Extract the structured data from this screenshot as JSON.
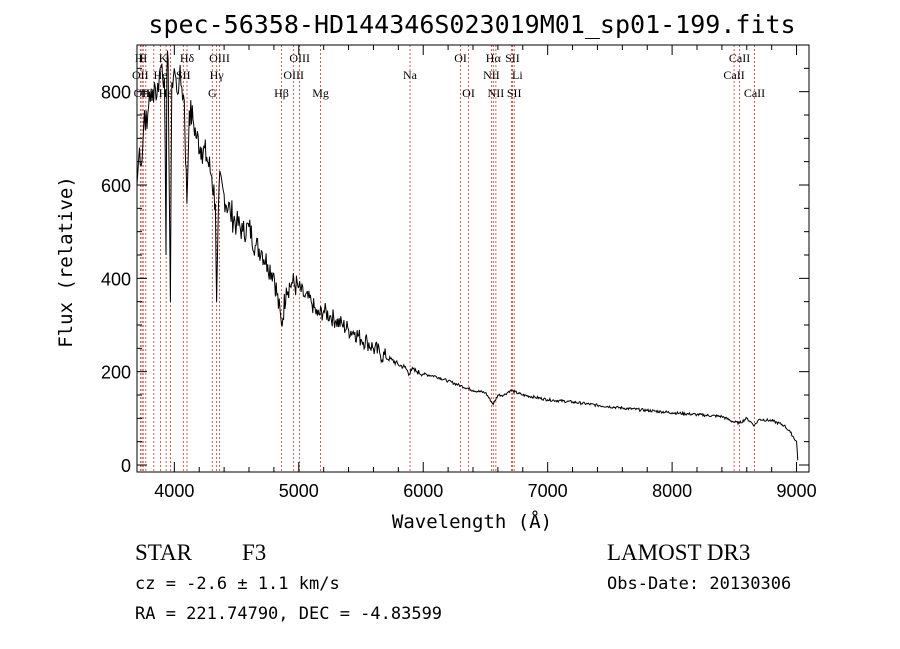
{
  "chart_data": {
    "type": "line",
    "title": "spec-56358-HD144346S023019M01_sp01-199.fits",
    "xlabel": "Wavelength (Å)",
    "ylabel": "Flux (relative)",
    "xlim": [
      3700,
      9100
    ],
    "ylim": [
      -15,
      900
    ],
    "xticks": [
      4000,
      5000,
      6000,
      7000,
      8000,
      9000
    ],
    "yticks": [
      0,
      200,
      400,
      600,
      800
    ],
    "grid": false,
    "series": [
      {
        "name": "flux",
        "x": [
          3700,
          3720,
          3740,
          3760,
          3780,
          3800,
          3820,
          3840,
          3860,
          3880,
          3900,
          3920,
          3933,
          3940,
          3950,
          3968,
          3980,
          4000,
          4020,
          4040,
          4060,
          4080,
          4101,
          4120,
          4150,
          4180,
          4220,
          4260,
          4300,
          4330,
          4340,
          4360,
          4400,
          4450,
          4500,
          4550,
          4600,
          4650,
          4700,
          4750,
          4800,
          4861,
          4900,
          4950,
          5000,
          5050,
          5100,
          5150,
          5200,
          5250,
          5300,
          5350,
          5400,
          5450,
          5500,
          5550,
          5600,
          5650,
          5700,
          5750,
          5800,
          5850,
          5890,
          5900,
          5950,
          6000,
          6100,
          6200,
          6300,
          6400,
          6500,
          6563,
          6600,
          6650,
          6700,
          6800,
          6900,
          7000,
          7200,
          7400,
          7600,
          7800,
          8000,
          8200,
          8400,
          8498,
          8542,
          8600,
          8662,
          8700,
          8800,
          8900,
          8950,
          9000,
          9010
        ],
        "y": [
          600,
          680,
          650,
          760,
          720,
          800,
          780,
          820,
          790,
          840,
          860,
          830,
          450,
          840,
          870,
          350,
          820,
          850,
          800,
          830,
          810,
          780,
          560,
          760,
          740,
          700,
          680,
          660,
          620,
          560,
          350,
          600,
          580,
          540,
          520,
          500,
          510,
          470,
          460,
          430,
          410,
          300,
          380,
          390,
          380,
          360,
          350,
          320,
          330,
          320,
          310,
          300,
          290,
          285,
          270,
          265,
          250,
          240,
          230,
          225,
          215,
          210,
          195,
          205,
          200,
          195,
          190,
          180,
          170,
          160,
          155,
          130,
          150,
          150,
          160,
          150,
          145,
          140,
          135,
          128,
          122,
          117,
          112,
          108,
          104,
          92,
          90,
          100,
          85,
          98,
          95,
          85,
          70,
          50,
          10
        ]
      }
    ],
    "lines": [
      {
        "name": "H",
        "wavelength": 3750,
        "row": 1,
        "offset": -4
      },
      {
        "name": "H",
        "wavelength": 3771,
        "row": 1,
        "offset": -3
      },
      {
        "name": "K",
        "wavelength": 3934,
        "row": 1,
        "offset": -3
      },
      {
        "name": "Hδ",
        "wavelength": 4102,
        "row": 1,
        "offset": 0
      },
      {
        "name": "OII",
        "wavelength": 3727,
        "row": 2,
        "offset": 0
      },
      {
        "name": "He",
        "wavelength": 3889,
        "row": 2,
        "offset": 0
      },
      {
        "name": "SII",
        "wavelength": 4072,
        "row": 2,
        "offset": 0
      },
      {
        "name": "OIII",
        "wavelength": 4363,
        "row": 1,
        "offset": 0
      },
      {
        "name": "Hγ",
        "wavelength": 4340,
        "row": 2,
        "offset": 0
      },
      {
        "name": "G",
        "wavelength": 4305,
        "row": 3,
        "offset": 0
      },
      {
        "name": "Hε",
        "wavelength": 3970,
        "row": 3,
        "offset": -5
      },
      {
        "name": "Hζ",
        "wavelength": 3835,
        "row": 3,
        "offset": -6
      },
      {
        "name": "OII",
        "wavelength": 3740,
        "row": 3,
        "offset": 0
      },
      {
        "name": "OIII",
        "wavelength": 5007,
        "row": 1,
        "offset": 0
      },
      {
        "name": "OIII",
        "wavelength": 4959,
        "row": 2,
        "offset": 0
      },
      {
        "name": "Hβ",
        "wavelength": 4861,
        "row": 3,
        "offset": 0
      },
      {
        "name": "Mg",
        "wavelength": 5175,
        "row": 3,
        "offset": 0
      },
      {
        "name": "Na",
        "wavelength": 5894,
        "row": 2,
        "offset": 0
      },
      {
        "name": "OI",
        "wavelength": 6300,
        "row": 1,
        "offset": 0
      },
      {
        "name": "OI",
        "wavelength": 6364,
        "row": 3,
        "offset": 0
      },
      {
        "name": "Hα",
        "wavelength": 6563,
        "row": 1,
        "offset": 0
      },
      {
        "name": "NII",
        "wavelength": 6548,
        "row": 2,
        "offset": 0
      },
      {
        "name": "NII",
        "wavelength": 6584,
        "row": 3,
        "offset": 0
      },
      {
        "name": "SII",
        "wavelength": 6717,
        "row": 1,
        "offset": 0
      },
      {
        "name": "Li",
        "wavelength": 6708,
        "row": 2,
        "offset": 6
      },
      {
        "name": "SII",
        "wavelength": 6731,
        "row": 3,
        "offset": 0
      },
      {
        "name": "CaII",
        "wavelength": 8542,
        "row": 1,
        "offset": 0
      },
      {
        "name": "CaII",
        "wavelength": 8498,
        "row": 2,
        "offset": 0
      },
      {
        "name": "CaII",
        "wavelength": 8662,
        "row": 3,
        "offset": 0
      }
    ],
    "colors": {
      "line": "#000000",
      "marker": "#c0392b",
      "axis": "#000000"
    }
  },
  "info": {
    "object_class": "STAR",
    "subclass": "F3",
    "survey": "LAMOST DR3",
    "redshift": "cz = -2.6 ± 1.1 km/s",
    "obs_date": "Obs-Date: 20130306",
    "coords": "RA = 221.74790, DEC =  -4.83599"
  }
}
